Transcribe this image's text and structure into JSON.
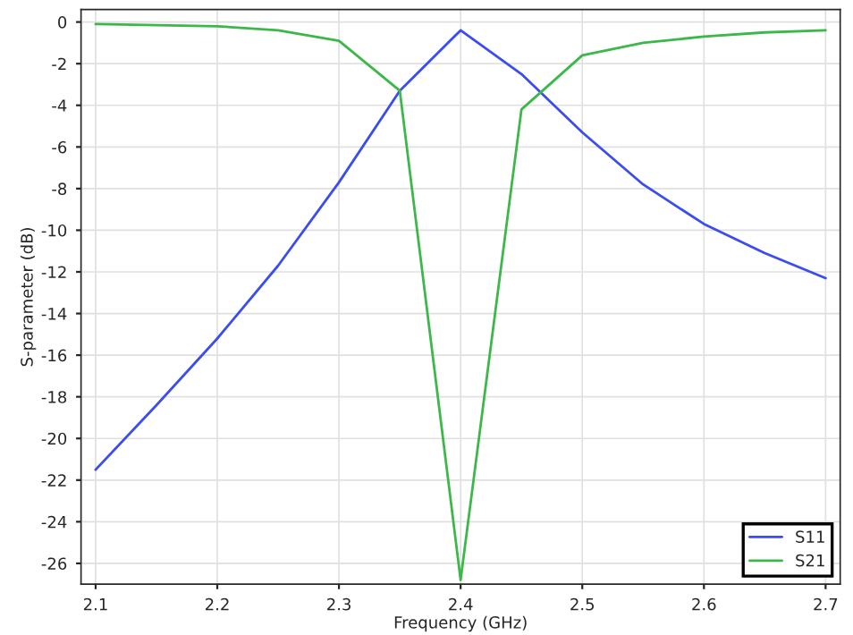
{
  "chart_data": {
    "type": "line",
    "xlabel": "Frequency (GHz)",
    "ylabel": "S-parameter (dB)",
    "x": [
      2.1,
      2.15,
      2.2,
      2.25,
      2.3,
      2.35,
      2.4,
      2.45,
      2.5,
      2.55,
      2.6,
      2.65,
      2.7
    ],
    "series": [
      {
        "name": "S11",
        "color": "#3b4cf0",
        "values": [
          -21.5,
          -18.4,
          -15.2,
          -11.7,
          -7.7,
          -3.3,
          -0.4,
          -2.5,
          -5.3,
          -7.8,
          -9.7,
          -11.1,
          -12.3
        ]
      },
      {
        "name": "S21",
        "color": "#3cb84a",
        "values": [
          -0.1,
          -0.15,
          -0.2,
          -0.4,
          -0.9,
          -3.3,
          -26.8,
          -4.2,
          -1.6,
          -1.0,
          -0.7,
          -0.5,
          -0.4
        ]
      }
    ],
    "xlim": [
      2.088,
      2.712
    ],
    "ylim": [
      -27.0,
      0.6
    ],
    "xticks": [
      2.1,
      2.2,
      2.3,
      2.4,
      2.5,
      2.6,
      2.7
    ],
    "yticks": [
      0,
      -2,
      -4,
      -6,
      -8,
      -10,
      -12,
      -14,
      -16,
      -18,
      -20,
      -22,
      -24,
      -26
    ],
    "grid": true,
    "legend": "bottom right",
    "line_style": "solid",
    "marker": "none"
  }
}
